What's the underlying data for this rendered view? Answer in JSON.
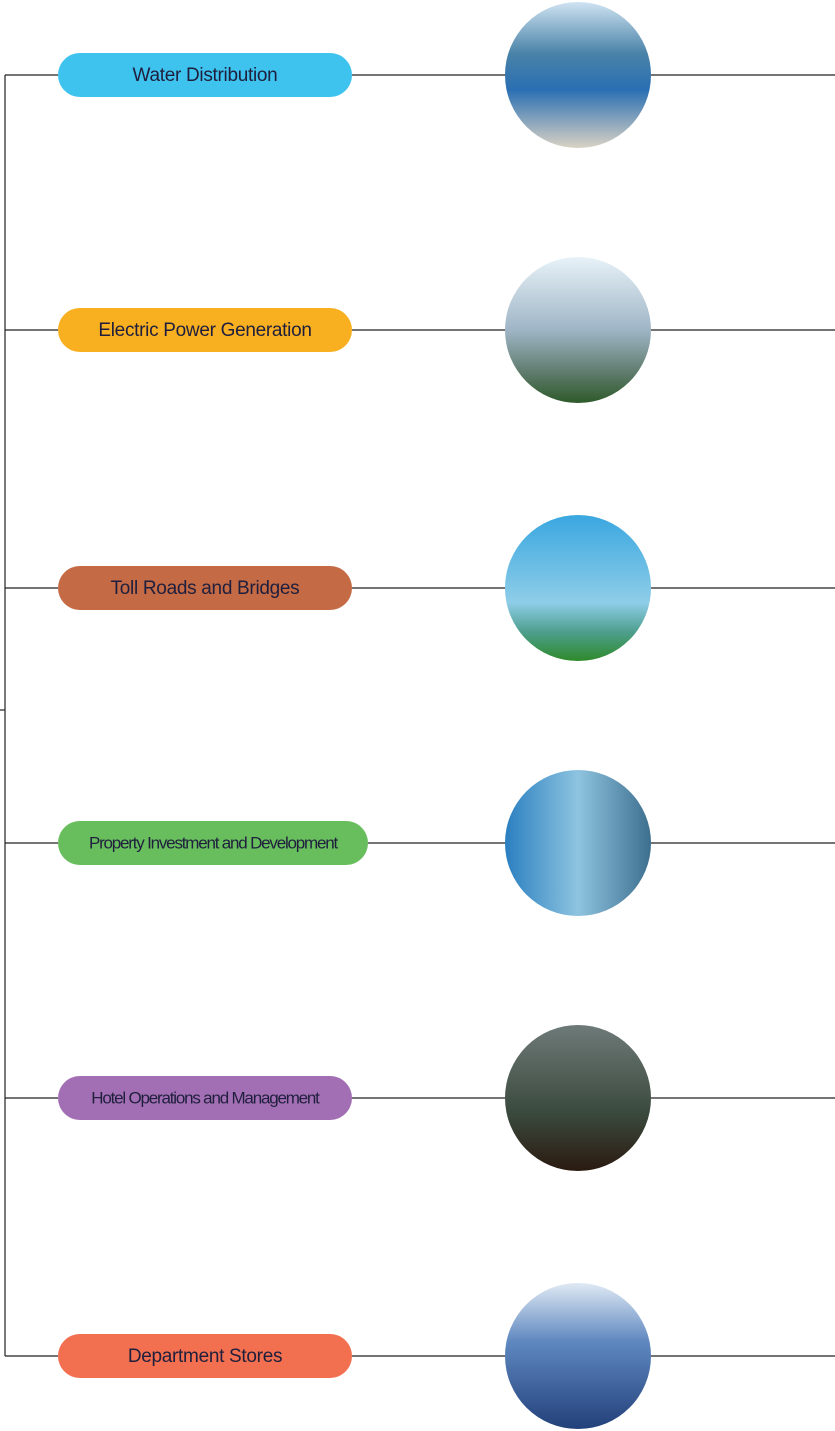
{
  "nodes": [
    {
      "label": "Water Distribution"
    },
    {
      "label": "Electric Power Generation"
    },
    {
      "label": "Toll Roads and Bridges"
    },
    {
      "label": "Property Investment and Development"
    },
    {
      "label": "Hotel Operations and Management"
    },
    {
      "label": "Department Stores"
    }
  ]
}
